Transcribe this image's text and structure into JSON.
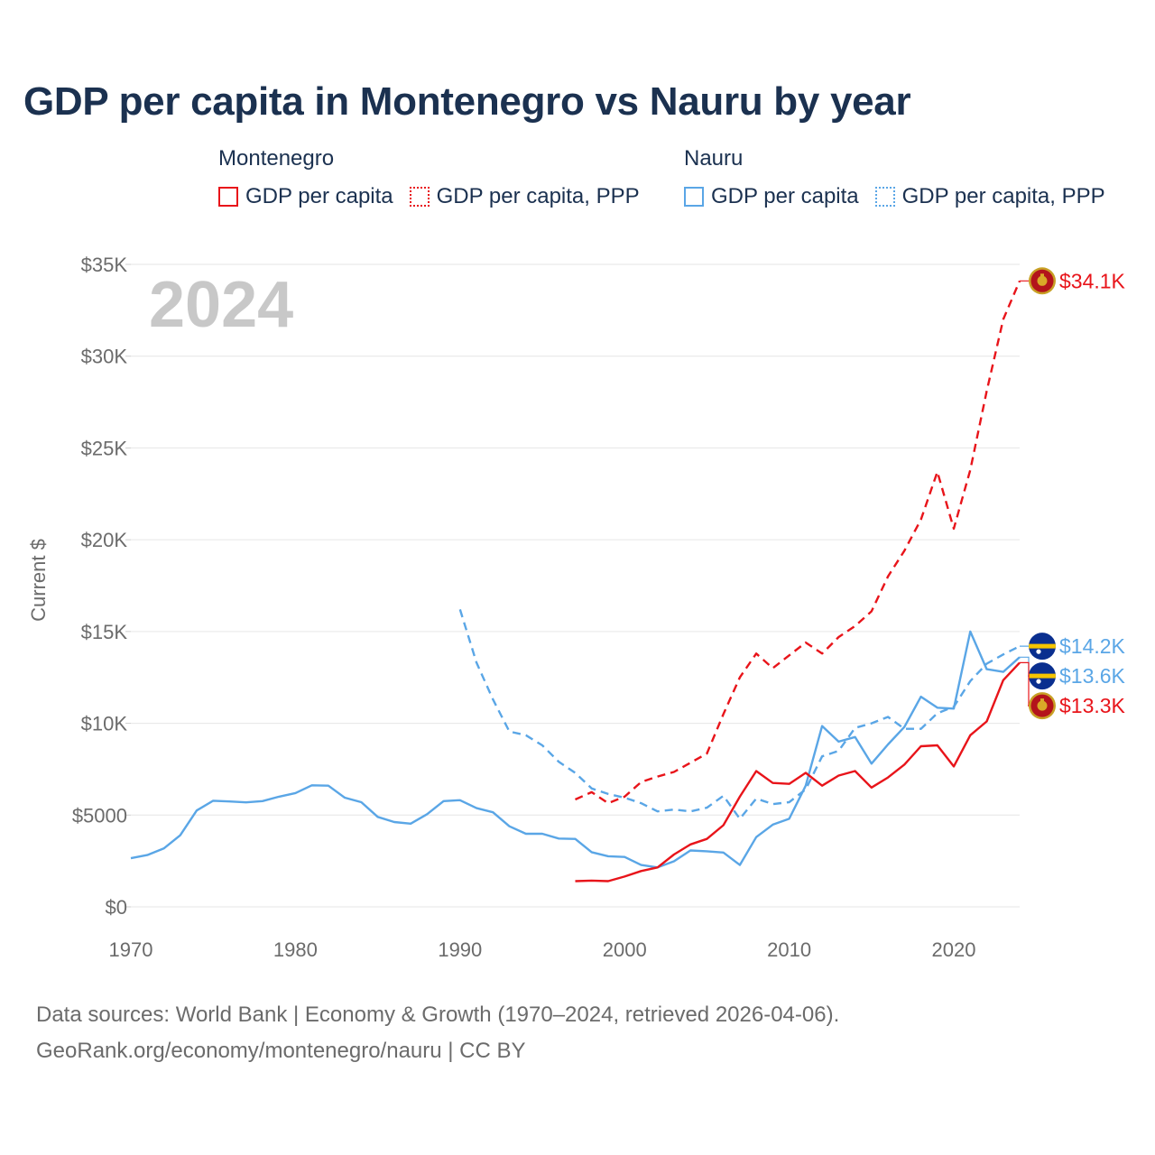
{
  "title": "GDP per capita in Montenegro vs Nauru by year",
  "legend": {
    "montenegro": {
      "title": "Montenegro",
      "gdp": "GDP per capita",
      "ppp": "GDP per capita, PPP"
    },
    "nauru": {
      "title": "Nauru",
      "gdp": "GDP per capita",
      "ppp": "GDP per capita, PPP"
    }
  },
  "source": {
    "line1": "Data sources: World Bank | Economy & Growth (1970–2024, retrieved 2026-04-06).",
    "line2": "GeoRank.org/economy/montenegro/nauru | CC BY"
  },
  "chart_data": {
    "type": "line",
    "year_label": "2024",
    "ylabel": "Current $",
    "xlim": [
      1970,
      2024
    ],
    "ylim": [
      0,
      35000
    ],
    "x_ticks": [
      1970,
      1980,
      1990,
      2000,
      2010,
      2020
    ],
    "x_tick_labels": [
      "1970",
      "1980",
      "1990",
      "2000",
      "2010",
      "2020"
    ],
    "y_ticks": [
      0,
      5000,
      10000,
      15000,
      20000,
      25000,
      30000,
      35000
    ],
    "y_tick_labels": [
      "$0",
      "$5000",
      "$10K",
      "$15K",
      "$20K",
      "$25K",
      "$30K",
      "$35K"
    ],
    "grid": true,
    "colors": {
      "montenegro": "#e8141a",
      "nauru": "#5aa6e6"
    },
    "series": [
      {
        "name": "Nauru GDP per capita",
        "country": "nauru",
        "style": "solid",
        "end_label": "$13.6K",
        "points": [
          [
            1970,
            2650
          ],
          [
            1971,
            2820
          ],
          [
            1972,
            3180
          ],
          [
            1973,
            3900
          ],
          [
            1974,
            5250
          ],
          [
            1975,
            5780
          ],
          [
            1976,
            5740
          ],
          [
            1977,
            5690
          ],
          [
            1978,
            5760
          ],
          [
            1979,
            6000
          ],
          [
            1980,
            6200
          ],
          [
            1981,
            6620
          ],
          [
            1982,
            6600
          ],
          [
            1983,
            5950
          ],
          [
            1984,
            5700
          ],
          [
            1985,
            4900
          ],
          [
            1986,
            4620
          ],
          [
            1987,
            4530
          ],
          [
            1988,
            5050
          ],
          [
            1989,
            5760
          ],
          [
            1990,
            5810
          ],
          [
            1991,
            5380
          ],
          [
            1992,
            5150
          ],
          [
            1993,
            4390
          ],
          [
            1994,
            3980
          ],
          [
            1995,
            3980
          ],
          [
            1996,
            3720
          ],
          [
            1997,
            3700
          ],
          [
            1998,
            2980
          ],
          [
            1999,
            2760
          ],
          [
            2000,
            2720
          ],
          [
            2001,
            2280
          ],
          [
            2002,
            2150
          ],
          [
            2003,
            2480
          ],
          [
            2004,
            3070
          ],
          [
            2005,
            3030
          ],
          [
            2006,
            2960
          ],
          [
            2007,
            2280
          ],
          [
            2008,
            3800
          ],
          [
            2009,
            4480
          ],
          [
            2010,
            4800
          ],
          [
            2011,
            6600
          ],
          [
            2012,
            9850
          ],
          [
            2013,
            9000
          ],
          [
            2014,
            9250
          ],
          [
            2015,
            7800
          ],
          [
            2016,
            8850
          ],
          [
            2017,
            9800
          ],
          [
            2018,
            11450
          ],
          [
            2019,
            10850
          ],
          [
            2020,
            10800
          ],
          [
            2021,
            15000
          ],
          [
            2022,
            12950
          ],
          [
            2023,
            12800
          ],
          [
            2024,
            13600
          ]
        ]
      },
      {
        "name": "Nauru GDP per capita, PPP",
        "country": "nauru",
        "style": "dashed",
        "end_label": "$14.2K",
        "points": [
          [
            1990,
            16200
          ],
          [
            1991,
            13300
          ],
          [
            1992,
            11300
          ],
          [
            1993,
            9550
          ],
          [
            1994,
            9350
          ],
          [
            1995,
            8800
          ],
          [
            1996,
            7900
          ],
          [
            1997,
            7300
          ],
          [
            1998,
            6450
          ],
          [
            1999,
            6150
          ],
          [
            2000,
            5950
          ],
          [
            2001,
            5650
          ],
          [
            2002,
            5200
          ],
          [
            2003,
            5300
          ],
          [
            2004,
            5200
          ],
          [
            2005,
            5400
          ],
          [
            2006,
            6050
          ],
          [
            2007,
            4800
          ],
          [
            2008,
            5900
          ],
          [
            2009,
            5600
          ],
          [
            2010,
            5700
          ],
          [
            2011,
            6400
          ],
          [
            2012,
            8200
          ],
          [
            2013,
            8500
          ],
          [
            2014,
            9750
          ],
          [
            2015,
            10000
          ],
          [
            2016,
            10350
          ],
          [
            2017,
            9700
          ],
          [
            2018,
            9700
          ],
          [
            2019,
            10550
          ],
          [
            2020,
            10900
          ],
          [
            2021,
            12300
          ],
          [
            2022,
            13250
          ],
          [
            2023,
            13750
          ],
          [
            2024,
            14200
          ]
        ]
      },
      {
        "name": "Montenegro GDP per capita",
        "country": "montenegro",
        "style": "solid",
        "end_label": "$13.3K",
        "points": [
          [
            1997,
            1400
          ],
          [
            1998,
            1430
          ],
          [
            1999,
            1400
          ],
          [
            2000,
            1650
          ],
          [
            2001,
            1950
          ],
          [
            2002,
            2150
          ],
          [
            2003,
            2850
          ],
          [
            2004,
            3400
          ],
          [
            2005,
            3700
          ],
          [
            2006,
            4450
          ],
          [
            2007,
            6000
          ],
          [
            2008,
            7400
          ],
          [
            2009,
            6750
          ],
          [
            2010,
            6700
          ],
          [
            2011,
            7300
          ],
          [
            2012,
            6600
          ],
          [
            2013,
            7150
          ],
          [
            2014,
            7400
          ],
          [
            2015,
            6500
          ],
          [
            2016,
            7050
          ],
          [
            2017,
            7750
          ],
          [
            2018,
            8750
          ],
          [
            2019,
            8800
          ],
          [
            2020,
            7650
          ],
          [
            2021,
            9350
          ],
          [
            2022,
            10100
          ],
          [
            2023,
            12350
          ],
          [
            2024,
            13300
          ]
        ]
      },
      {
        "name": "Montenegro GDP per capita, PPP",
        "country": "montenegro",
        "style": "dashed",
        "end_label": "$34.1K",
        "points": [
          [
            1997,
            5850
          ],
          [
            1998,
            6250
          ],
          [
            1999,
            5650
          ],
          [
            2000,
            6000
          ],
          [
            2001,
            6800
          ],
          [
            2002,
            7100
          ],
          [
            2003,
            7350
          ],
          [
            2004,
            7850
          ],
          [
            2005,
            8350
          ],
          [
            2006,
            10500
          ],
          [
            2007,
            12500
          ],
          [
            2008,
            13800
          ],
          [
            2009,
            13000
          ],
          [
            2010,
            13700
          ],
          [
            2011,
            14400
          ],
          [
            2012,
            13800
          ],
          [
            2013,
            14700
          ],
          [
            2014,
            15300
          ],
          [
            2015,
            16100
          ],
          [
            2016,
            18000
          ],
          [
            2017,
            19400
          ],
          [
            2018,
            21100
          ],
          [
            2019,
            23700
          ],
          [
            2020,
            20600
          ],
          [
            2021,
            23800
          ],
          [
            2022,
            28100
          ],
          [
            2023,
            32000
          ],
          [
            2024,
            34100
          ]
        ]
      }
    ]
  }
}
